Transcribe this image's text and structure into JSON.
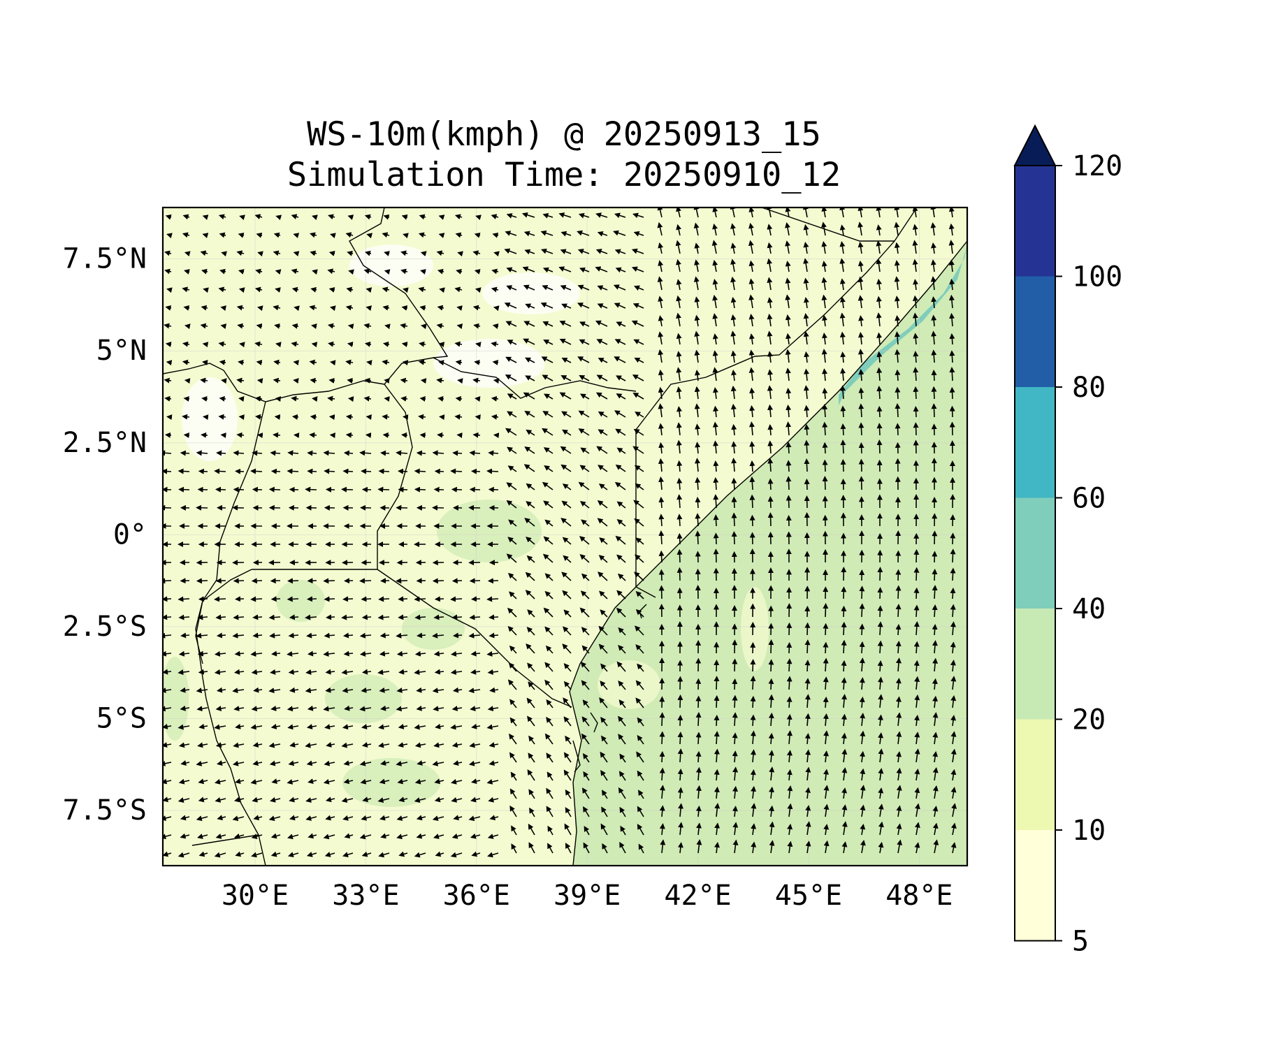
{
  "map": {
    "title": "WS-10m(kmph) @ 20250913_15",
    "subtitle": "Simulation Time: 20250910_12",
    "extent": {
      "lon": [
        27.5,
        49.3
      ],
      "lat": [
        -9.0,
        8.9
      ]
    },
    "x_ticks": [
      {
        "value": 30,
        "label": "30°E"
      },
      {
        "value": 33,
        "label": "33°E"
      },
      {
        "value": 36,
        "label": "36°E"
      },
      {
        "value": 39,
        "label": "39°E"
      },
      {
        "value": 42,
        "label": "42°E"
      },
      {
        "value": 45,
        "label": "45°E"
      },
      {
        "value": 48,
        "label": "48°E"
      }
    ],
    "y_ticks": [
      {
        "value": 7.5,
        "label": "7.5°N"
      },
      {
        "value": 5,
        "label": "5°N"
      },
      {
        "value": 2.5,
        "label": "2.5°N"
      },
      {
        "value": 0,
        "label": "0°"
      },
      {
        "value": -2.5,
        "label": "2.5°S"
      },
      {
        "value": -5,
        "label": "5°S"
      },
      {
        "value": -7.5,
        "label": "7.5°S"
      }
    ],
    "land_fill_color": "#f4fbd0",
    "sea_fill_color": "#d0ebb5",
    "wind_vectors": "arrow-icon"
  },
  "colorbar": {
    "levels": [
      {
        "label": "5",
        "color": "#ffffd9"
      },
      {
        "label": "10",
        "color": "#edf8b1"
      },
      {
        "label": "20",
        "color": "#c7e9b4"
      },
      {
        "label": "40",
        "color": "#7fcdbb"
      },
      {
        "label": "60",
        "color": "#41b6c4"
      },
      {
        "label": "80",
        "color": "#225ea8"
      },
      {
        "label": "100",
        "color": "#253494"
      },
      {
        "label": "120",
        "color": "#081d58"
      }
    ],
    "extend": "max",
    "extend_color": "#081d58"
  }
}
